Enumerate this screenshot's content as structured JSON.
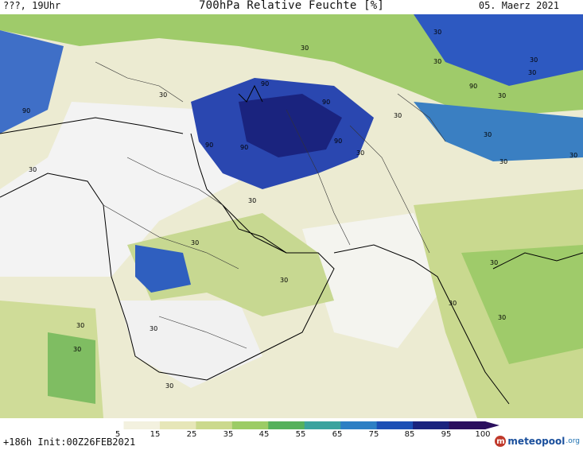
{
  "header": {
    "valid_time": "???, 19Uhr",
    "title": "700hPa Relative Feuchte [%]",
    "date": "05. Maerz 2021"
  },
  "footer": {
    "forecast_info": "+186h Init:00Z26FEB2021",
    "brand": "meteopool",
    "brand_suffix": ".org"
  },
  "map": {
    "contour_labels": [
      "90",
      "90",
      "90",
      "90",
      "90",
      "90",
      "90",
      "30",
      "30",
      "30",
      "30",
      "30",
      "30",
      "30",
      "30",
      "30",
      "30",
      "30",
      "30",
      "30",
      "30",
      "30",
      "30",
      "30",
      "30",
      "30",
      "30",
      "30",
      "30",
      "30"
    ]
  },
  "colorbar": {
    "ticks": [
      "5",
      "15",
      "25",
      "35",
      "45",
      "55",
      "65",
      "75",
      "85",
      "95",
      "100"
    ],
    "colors": [
      "#ffffff",
      "#f3f1df",
      "#e6e6b8",
      "#cbd98d",
      "#9ccc65",
      "#55b15c",
      "#3aa39e",
      "#2d7fc4",
      "#1c4fb5",
      "#1a237e",
      "#2b0f5e"
    ]
  }
}
